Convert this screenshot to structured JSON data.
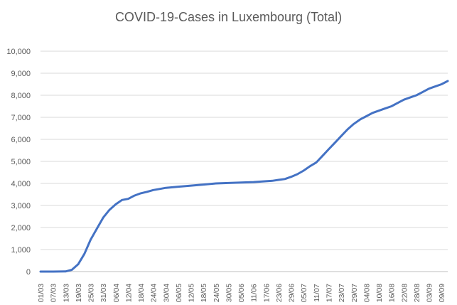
{
  "chart_data": {
    "type": "line",
    "title": "COVID-19-Cases in Luxembourg (Total)",
    "xlabel": "",
    "ylabel": "",
    "ylim": [
      0,
      10000
    ],
    "yticks": [
      "0",
      "1,000",
      "2,000",
      "3,000",
      "4,000",
      "5,000",
      "6,000",
      "7,000",
      "8,000",
      "9,000",
      "10,000"
    ],
    "x_tick_labels": [
      "01/03",
      "07/03",
      "13/03",
      "19/03",
      "25/03",
      "31/03",
      "06/04",
      "12/04",
      "18/04",
      "24/04",
      "30/04",
      "06/05",
      "12/05",
      "18/05",
      "24/05",
      "30/05",
      "05/06",
      "11/06",
      "17/06",
      "23/06",
      "29/06",
      "05/07",
      "11/07",
      "17/07",
      "23/07",
      "29/07",
      "04/08",
      "10/08",
      "16/08",
      "22/08",
      "28/08",
      "03/09",
      "09/09"
    ],
    "grid": true,
    "legend": "none",
    "line_color": "#4472C4",
    "series": [
      {
        "x": [
          "01/03",
          "07/03",
          "13/03",
          "16/03",
          "19/03",
          "22/03",
          "25/03",
          "28/03",
          "31/03",
          "03/04",
          "06/04",
          "09/04",
          "12/04",
          "15/04",
          "18/04",
          "21/04",
          "24/04",
          "27/04",
          "30/04",
          "06/05",
          "12/05",
          "18/05",
          "24/05",
          "30/05",
          "05/06",
          "11/06",
          "17/06",
          "20/06",
          "23/06",
          "26/06",
          "29/06",
          "02/07",
          "05/07",
          "08/07",
          "11/07",
          "14/07",
          "17/07",
          "20/07",
          "23/07",
          "26/07",
          "29/07",
          "01/08",
          "04/08",
          "07/08",
          "10/08",
          "13/08",
          "16/08",
          "19/08",
          "22/08",
          "25/08",
          "28/08",
          "31/08",
          "03/09",
          "06/09",
          "09/09",
          "12/09"
        ],
        "values": [
          0,
          0,
          5,
          80,
          330,
          800,
          1450,
          1950,
          2450,
          2800,
          3050,
          3250,
          3300,
          3450,
          3550,
          3620,
          3700,
          3750,
          3800,
          3850,
          3900,
          3950,
          4000,
          4020,
          4040,
          4060,
          4100,
          4120,
          4160,
          4200,
          4300,
          4420,
          4580,
          4780,
          4950,
          5250,
          5550,
          5850,
          6150,
          6450,
          6700,
          6900,
          7050,
          7200,
          7300,
          7400,
          7500,
          7650,
          7800,
          7900,
          8000,
          8150,
          8300,
          8400,
          8500,
          8650
        ]
      }
    ]
  }
}
